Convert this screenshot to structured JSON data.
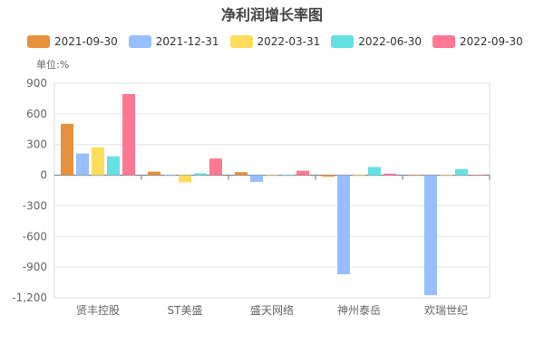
{
  "chart_data": {
    "type": "bar",
    "title": "净利润增长率图",
    "unit_label": "单位:%",
    "categories": [
      "贤丰控股",
      "ST美盛",
      "盛天网络",
      "神州泰岳",
      "欢瑞世纪"
    ],
    "series": [
      {
        "name": "2021-09-30",
        "color": "#e8913c",
        "values": [
          503,
          35,
          30,
          -15,
          0
        ]
      },
      {
        "name": "2021-12-31",
        "color": "#97bfff",
        "values": [
          212,
          -1,
          -65,
          -970,
          -1175
        ]
      },
      {
        "name": "2022-03-31",
        "color": "#ffdd5c",
        "values": [
          274,
          -70,
          0,
          -8,
          0
        ]
      },
      {
        "name": "2022-06-30",
        "color": "#66e0e3",
        "values": [
          185,
          18,
          0,
          80,
          60
        ]
      },
      {
        "name": "2022-09-30",
        "color": "#ff7893",
        "values": [
          794,
          163,
          44,
          15,
          3
        ]
      }
    ],
    "yticks": [
      900,
      600,
      300,
      0,
      -300,
      -600,
      -900,
      -1200
    ],
    "ytick_labels": [
      "900",
      "600",
      "300",
      "0",
      "-300",
      "-600",
      "-900",
      "-1,200"
    ],
    "ylim": [
      -1200,
      900
    ],
    "grid": true,
    "legend_position": "top"
  }
}
